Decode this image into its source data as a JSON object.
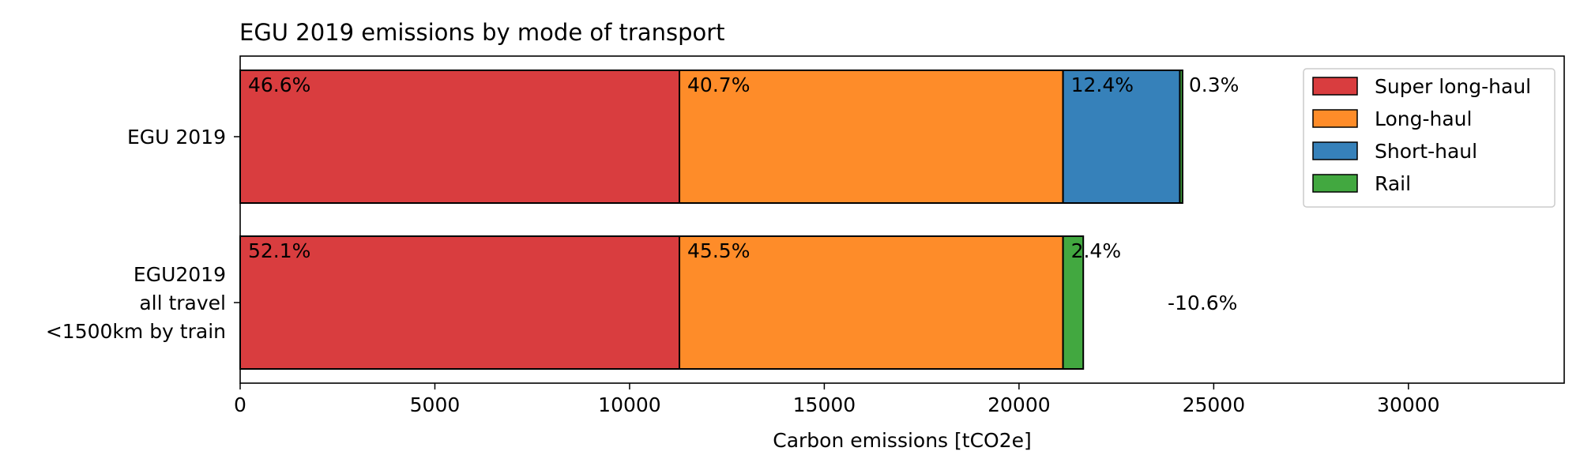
{
  "chart_data": {
    "type": "bar",
    "orientation": "horizontal",
    "stacked": true,
    "title": "EGU 2019 emissions by mode of transport",
    "xlabel": "Carbon emissions [tCO2e]",
    "ylabel": "",
    "xlim": [
      0,
      34000
    ],
    "xticks": [
      0,
      5000,
      10000,
      15000,
      20000,
      25000,
      30000
    ],
    "xtick_labels": [
      "0",
      "5000",
      "10000",
      "15000",
      "20000",
      "25000",
      "30000"
    ],
    "grid": false,
    "legend_position": "top-right",
    "categories": [
      [
        "EGU 2019"
      ],
      [
        "EGU2019",
        "all travel",
        "<1500km by train"
      ]
    ],
    "series": [
      {
        "name": "Super long-haul",
        "color": "#d93d3f",
        "values": [
          11280,
          11280
        ],
        "labels": [
          "46.6%",
          "52.1%"
        ]
      },
      {
        "name": "Long-haul",
        "color": "#fe8c29",
        "values": [
          9850,
          9850
        ],
        "labels": [
          "40.7%",
          "45.5%"
        ]
      },
      {
        "name": "Short-haul",
        "color": "#3681ba",
        "values": [
          3000,
          0
        ],
        "labels": [
          "12.4%",
          ""
        ]
      },
      {
        "name": "Rail",
        "color": "#42a840",
        "values": [
          70,
          520
        ],
        "labels": [
          "0.3%",
          "2.4%"
        ]
      }
    ],
    "annotations": [
      {
        "text": "-10.6%",
        "category_index": 1
      }
    ]
  }
}
